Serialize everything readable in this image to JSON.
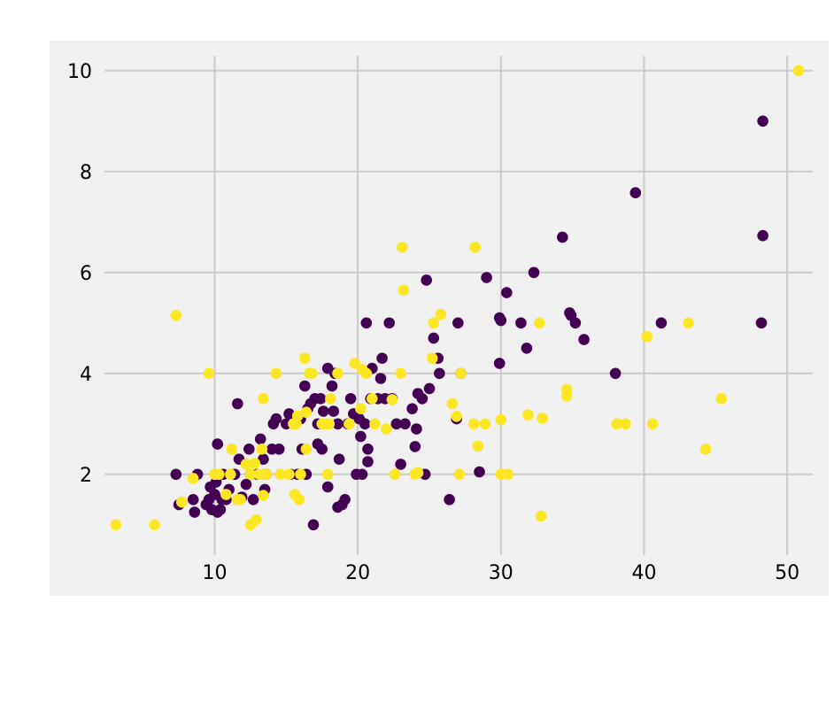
{
  "chart_data": {
    "type": "scatter",
    "title": "",
    "xlabel": "",
    "ylabel": "",
    "xlim": [
      2.3,
      52.9
    ],
    "ylim": [
      0.4,
      10.4
    ],
    "xticks": [
      10,
      20,
      30,
      40,
      50
    ],
    "yticks": [
      2,
      4,
      6,
      8,
      10
    ],
    "grid": true,
    "background": "#f0f0f0",
    "grid_color": "#cbcbcb",
    "series": [
      {
        "color": "#440154",
        "points": [
          [
            7.3,
            2.0
          ],
          [
            7.5,
            1.4
          ],
          [
            8.5,
            1.5
          ],
          [
            8.6,
            1.25
          ],
          [
            8.8,
            2.0
          ],
          [
            9.4,
            1.4
          ],
          [
            9.6,
            1.5
          ],
          [
            9.7,
            1.75
          ],
          [
            9.8,
            1.3
          ],
          [
            10.0,
            1.6
          ],
          [
            10.1,
            1.85
          ],
          [
            10.2,
            1.25
          ],
          [
            10.2,
            2.6
          ],
          [
            10.4,
            1.3
          ],
          [
            10.5,
            1.5
          ],
          [
            10.6,
            2.0
          ],
          [
            10.8,
            1.5
          ],
          [
            11.0,
            1.7
          ],
          [
            11.4,
            2.0
          ],
          [
            11.6,
            3.4
          ],
          [
            11.7,
            2.3
          ],
          [
            11.9,
            1.55
          ],
          [
            12.2,
            1.8
          ],
          [
            12.4,
            2.5
          ],
          [
            12.5,
            2.0
          ],
          [
            12.7,
            1.5
          ],
          [
            13.0,
            2.0
          ],
          [
            13.2,
            2.7
          ],
          [
            13.4,
            2.3
          ],
          [
            13.5,
            1.7
          ],
          [
            13.6,
            2.0
          ],
          [
            14.0,
            2.5
          ],
          [
            14.1,
            3.0
          ],
          [
            14.3,
            3.1
          ],
          [
            14.5,
            2.5
          ],
          [
            15.0,
            3.0
          ],
          [
            15.2,
            3.2
          ],
          [
            15.3,
            2.0
          ],
          [
            15.6,
            3.0
          ],
          [
            15.8,
            2.0
          ],
          [
            16.0,
            3.1
          ],
          [
            16.1,
            2.5
          ],
          [
            16.3,
            3.75
          ],
          [
            16.4,
            2.0
          ],
          [
            16.5,
            3.3
          ],
          [
            16.7,
            3.4
          ],
          [
            16.9,
            1.0
          ],
          [
            17.0,
            3.5
          ],
          [
            17.2,
            3.0
          ],
          [
            17.2,
            2.6
          ],
          [
            17.4,
            3.5
          ],
          [
            17.5,
            2.5
          ],
          [
            17.6,
            3.25
          ],
          [
            17.9,
            1.75
          ],
          [
            17.9,
            4.1
          ],
          [
            18.2,
            3.75
          ],
          [
            18.3,
            3.25
          ],
          [
            18.4,
            4.0
          ],
          [
            18.6,
            3.0
          ],
          [
            18.7,
            2.3
          ],
          [
            18.6,
            1.35
          ],
          [
            18.9,
            1.4
          ],
          [
            19.1,
            1.5
          ],
          [
            19.3,
            3.0
          ],
          [
            19.5,
            3.5
          ],
          [
            19.7,
            3.2
          ],
          [
            19.9,
            2.0
          ],
          [
            20.1,
            3.1
          ],
          [
            20.2,
            2.75
          ],
          [
            20.3,
            2.0
          ],
          [
            20.5,
            3.0
          ],
          [
            20.6,
            5.0
          ],
          [
            20.7,
            2.25
          ],
          [
            20.7,
            2.5
          ],
          [
            20.9,
            3.5
          ],
          [
            21.0,
            4.1
          ],
          [
            21.4,
            3.5
          ],
          [
            21.6,
            3.9
          ],
          [
            21.7,
            4.3
          ],
          [
            21.9,
            3.5
          ],
          [
            22.2,
            5.0
          ],
          [
            22.4,
            3.5
          ],
          [
            22.7,
            3.0
          ],
          [
            23.0,
            2.2
          ],
          [
            23.3,
            3.0
          ],
          [
            23.8,
            3.3
          ],
          [
            24.0,
            2.55
          ],
          [
            24.1,
            2.9
          ],
          [
            24.2,
            3.6
          ],
          [
            24.5,
            3.5
          ],
          [
            24.7,
            2.0
          ],
          [
            24.8,
            5.85
          ],
          [
            25.0,
            3.7
          ],
          [
            25.3,
            4.7
          ],
          [
            25.6,
            4.3
          ],
          [
            25.7,
            4.0
          ],
          [
            26.4,
            1.5
          ],
          [
            26.9,
            3.1
          ],
          [
            27.0,
            5.0
          ],
          [
            27.2,
            4.0
          ],
          [
            28.5,
            2.05
          ],
          [
            29.0,
            5.9
          ],
          [
            29.9,
            4.2
          ],
          [
            29.9,
            5.1
          ],
          [
            30.0,
            5.05
          ],
          [
            30.4,
            5.6
          ],
          [
            31.4,
            5.0
          ],
          [
            31.8,
            4.5
          ],
          [
            32.3,
            6.0
          ],
          [
            34.3,
            6.7
          ],
          [
            34.8,
            5.2
          ],
          [
            34.9,
            5.15
          ],
          [
            35.2,
            5.0
          ],
          [
            35.8,
            4.67
          ],
          [
            38.0,
            4.0
          ],
          [
            39.4,
            7.58
          ],
          [
            41.2,
            5.0
          ],
          [
            48.2,
            5.0
          ],
          [
            48.3,
            6.73
          ],
          [
            48.3,
            9.0
          ]
        ]
      },
      {
        "color": "#fde725",
        "points": [
          [
            3.1,
            1.0
          ],
          [
            5.8,
            1.0
          ],
          [
            7.3,
            5.15
          ],
          [
            7.7,
            1.45
          ],
          [
            8.5,
            1.92
          ],
          [
            9.6,
            4.0
          ],
          [
            10.0,
            2.0
          ],
          [
            10.3,
            2.0
          ],
          [
            10.8,
            1.6
          ],
          [
            11.1,
            2.0
          ],
          [
            11.2,
            2.5
          ],
          [
            11.6,
            1.5
          ],
          [
            11.8,
            1.5
          ],
          [
            12.2,
            2.2
          ],
          [
            12.5,
            1.0
          ],
          [
            12.5,
            2.0
          ],
          [
            12.8,
            2.22
          ],
          [
            12.9,
            1.1
          ],
          [
            13.1,
            2.0
          ],
          [
            13.3,
            2.5
          ],
          [
            13.4,
            1.58
          ],
          [
            13.4,
            3.5
          ],
          [
            13.6,
            2.0
          ],
          [
            14.3,
            4.0
          ],
          [
            14.6,
            2.0
          ],
          [
            15.2,
            2.0
          ],
          [
            15.5,
            3.0
          ],
          [
            15.6,
            1.6
          ],
          [
            15.7,
            3.0
          ],
          [
            15.8,
            3.16
          ],
          [
            15.9,
            1.5
          ],
          [
            16.0,
            2.0
          ],
          [
            16.3,
            4.3
          ],
          [
            16.4,
            2.5
          ],
          [
            16.4,
            3.23
          ],
          [
            16.6,
            4.0
          ],
          [
            16.8,
            4.0
          ],
          [
            17.5,
            3.0
          ],
          [
            17.8,
            3.0
          ],
          [
            17.9,
            2.0
          ],
          [
            18.0,
            3.0
          ],
          [
            18.1,
            3.5
          ],
          [
            18.6,
            4.0
          ],
          [
            19.4,
            3.0
          ],
          [
            19.8,
            4.2
          ],
          [
            20.2,
            3.3
          ],
          [
            20.3,
            4.08
          ],
          [
            20.6,
            4.0
          ],
          [
            21.0,
            3.5
          ],
          [
            21.2,
            3.0
          ],
          [
            22.0,
            2.9
          ],
          [
            22.4,
            3.48
          ],
          [
            22.6,
            2.0
          ],
          [
            23.0,
            4.0
          ],
          [
            23.1,
            6.5
          ],
          [
            23.2,
            5.65
          ],
          [
            24.0,
            2.0
          ],
          [
            24.2,
            2.03
          ],
          [
            25.2,
            4.3
          ],
          [
            25.3,
            5.0
          ],
          [
            25.8,
            5.17
          ],
          [
            26.6,
            3.4
          ],
          [
            26.9,
            3.15
          ],
          [
            27.1,
            2.0
          ],
          [
            27.2,
            4.0
          ],
          [
            28.1,
            3.0
          ],
          [
            28.2,
            6.5
          ],
          [
            28.4,
            2.56
          ],
          [
            28.9,
            3.0
          ],
          [
            30.0,
            2.0
          ],
          [
            30.0,
            3.08
          ],
          [
            30.5,
            2.0
          ],
          [
            31.9,
            3.18
          ],
          [
            32.7,
            5.0
          ],
          [
            32.8,
            1.17
          ],
          [
            32.9,
            3.11
          ],
          [
            34.6,
            3.55
          ],
          [
            34.6,
            3.68
          ],
          [
            38.1,
            3.0
          ],
          [
            38.7,
            3.0
          ],
          [
            40.2,
            4.73
          ],
          [
            40.6,
            3.0
          ],
          [
            43.1,
            5.0
          ],
          [
            44.3,
            2.5
          ],
          [
            45.4,
            3.5
          ],
          [
            50.8,
            10.0
          ]
        ]
      }
    ]
  }
}
